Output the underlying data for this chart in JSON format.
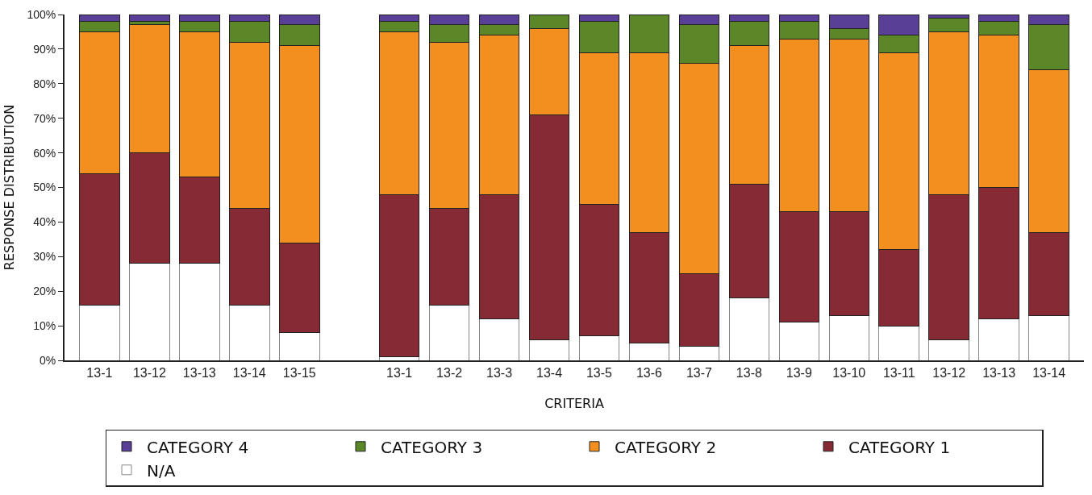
{
  "chart_data": {
    "type": "bar",
    "stacked": true,
    "xlabel": "CRITERIA",
    "ylabel": "RESPONSE DISTRIBUTION",
    "categories": [
      "13-1",
      "13-12",
      "13-13",
      "13-14",
      "13-15",
      null,
      "13-1",
      "13-2",
      "13-3",
      "13-4",
      "13-5",
      "13-6",
      "13-7",
      "13-8",
      "13-9",
      "13-10",
      "13-11",
      "13-12",
      "13-13",
      "13-14"
    ],
    "ylim": [
      0,
      100
    ],
    "yticks": [
      {
        "value": 0,
        "label": "0%"
      },
      {
        "value": 10,
        "label": "10%"
      },
      {
        "value": 20,
        "label": "20%"
      },
      {
        "value": 30,
        "label": "30%"
      },
      {
        "value": 40,
        "label": "40%"
      },
      {
        "value": 50,
        "label": "50%"
      },
      {
        "value": 60,
        "label": "60%"
      },
      {
        "value": 70,
        "label": "70%"
      },
      {
        "value": 80,
        "label": "80%"
      },
      {
        "value": 90,
        "label": "90%"
      },
      {
        "value": 100,
        "label": "100%"
      }
    ],
    "grid": false,
    "legend": "bottom",
    "series": [
      {
        "name": "N/A",
        "color": "#ffffff",
        "values": [
          16,
          28,
          28,
          16,
          8,
          null,
          1,
          16,
          12,
          6,
          7,
          5,
          4,
          18,
          11,
          13,
          10,
          6,
          12,
          13
        ]
      },
      {
        "name": "CATEGORY 1",
        "color": "#862a36",
        "values": [
          38,
          32,
          25,
          28,
          26,
          null,
          47,
          28,
          36,
          65,
          38,
          32,
          21,
          33,
          32,
          30,
          22,
          42,
          38,
          24
        ]
      },
      {
        "name": "CATEGORY 2",
        "color": "#f28f1e",
        "values": [
          41,
          37,
          42,
          48,
          57,
          null,
          47,
          48,
          46,
          25,
          44,
          52,
          61,
          40,
          50,
          50,
          57,
          47,
          44,
          47
        ]
      },
      {
        "name": "CATEGORY 3",
        "color": "#5b8729",
        "values": [
          3,
          1,
          3,
          6,
          6,
          null,
          3,
          5,
          3,
          4,
          9,
          11,
          11,
          7,
          5,
          3,
          5,
          4,
          4,
          13
        ]
      },
      {
        "name": "CATEGORY 4",
        "color": "#5a3f96",
        "values": [
          2,
          2,
          2,
          2,
          3,
          null,
          2,
          3,
          3,
          0,
          2,
          0,
          3,
          2,
          2,
          4,
          6,
          1,
          2,
          3
        ]
      }
    ]
  }
}
